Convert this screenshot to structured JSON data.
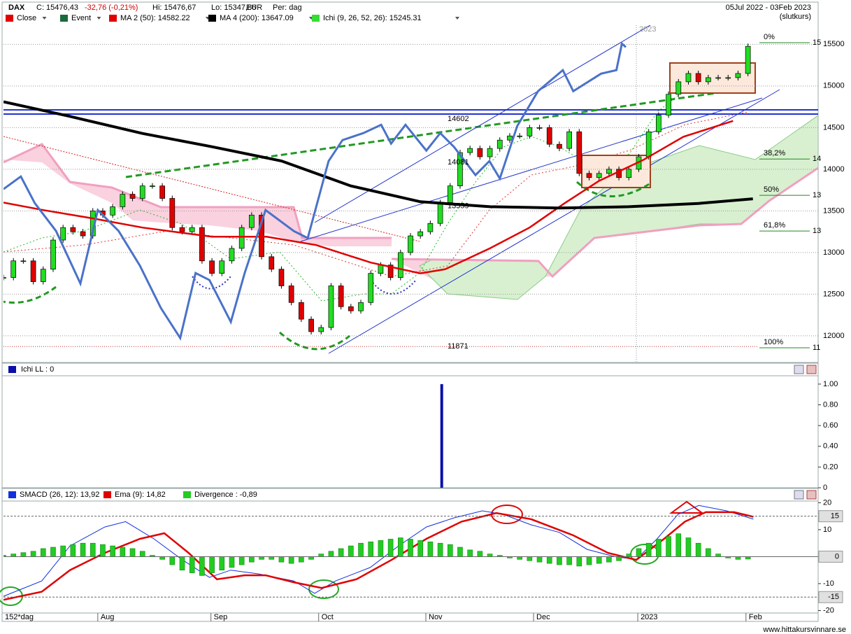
{
  "header": {
    "symbol": "DAX",
    "close": "C: 15476,43",
    "change": "-32,76 (-0,21%)",
    "high": "Hi: 15476,67",
    "low": "Lo: 15347,86",
    "currency": "EUR",
    "period": "Per: dag",
    "range": "05Jul 2022 - 03Feb 2023",
    "note": "(slutkurs)"
  },
  "footer": "www.hittakursvinnare.se",
  "chart_data": [
    {
      "type": "candlestick",
      "xlim": [
        0,
        164
      ],
      "ylim": [
        11680,
        15990
      ],
      "yticks": [
        12000,
        12500,
        13000,
        13500,
        14000,
        14500,
        15000,
        15500
      ],
      "grid": true,
      "year_label": "2023",
      "level_labels": [
        14602,
        14081,
        13559,
        11871
      ],
      "fib_levels": [
        {
          "value": 15520,
          "label": "0%",
          "price_label": "15"
        },
        {
          "value": 14123,
          "label": "38,2%",
          "price_label": "14"
        },
        {
          "value": 13687,
          "label": "50%",
          "price_label": "13"
        },
        {
          "value": 13258,
          "label": "61,8%",
          "price_label": "13"
        },
        {
          "value": 11856,
          "label": "100%",
          "price_label": "11"
        }
      ],
      "series": [
        {
          "name": "Close",
          "type": "candle",
          "color": "#e00000",
          "x": [
            0,
            2,
            4,
            6,
            8,
            10,
            12,
            14,
            16,
            18,
            20,
            22,
            24,
            26,
            28,
            30,
            32,
            34,
            36,
            38,
            40,
            42,
            44,
            46,
            48,
            50,
            52,
            54,
            56,
            58,
            60,
            62,
            64,
            66,
            68,
            70,
            72,
            74,
            76,
            78,
            80,
            82,
            84,
            86,
            88,
            90,
            92,
            94,
            96,
            98,
            100,
            102,
            104,
            106,
            108,
            110,
            112,
            114,
            116,
            118,
            120,
            122,
            124,
            126,
            128,
            130,
            132,
            134,
            136,
            138,
            140,
            142,
            144,
            146,
            148,
            150
          ],
          "values": [
            12700,
            12900,
            12900,
            12650,
            12800,
            13150,
            13300,
            13250,
            13200,
            13500,
            13450,
            13550,
            13700,
            13650,
            13800,
            13800,
            13650,
            13300,
            13250,
            13300,
            12900,
            12750,
            12900,
            13050,
            13300,
            13450,
            12950,
            12800,
            12600,
            12400,
            12200,
            12050,
            12100,
            12600,
            12350,
            12300,
            12400,
            12750,
            12850,
            12700,
            13000,
            13200,
            13250,
            13350,
            13600,
            13800,
            14200,
            14250,
            14150,
            14250,
            14350,
            14400,
            14400,
            14500,
            14500,
            14300,
            14250,
            14450,
            13950,
            13900,
            13950,
            14000,
            13900,
            14000,
            14150,
            14450,
            14650,
            14900,
            15050,
            15150,
            15050,
            15100,
            15100,
            15100,
            15150,
            15476
          ]
        },
        {
          "name": "Event",
          "type": "legend",
          "color": "#1a6b3a"
        },
        {
          "name": "MA 2 (50): 14582.22",
          "type": "line",
          "color": "#e00000",
          "width": 2.5,
          "x": [
            0,
            8,
            18,
            28,
            42,
            53,
            63,
            74,
            84,
            89,
            98,
            106,
            113,
            120,
            129,
            137,
            147
          ],
          "values": [
            13600,
            13510,
            13410,
            13300,
            13190,
            13190,
            13090,
            12880,
            12750,
            12800,
            13050,
            13300,
            13590,
            13860,
            14115,
            14390,
            14580
          ]
        },
        {
          "name": "MA 4 (200): 13647.09",
          "type": "line",
          "color": "#000000",
          "width": 4,
          "x": [
            0,
            13,
            28,
            42,
            56,
            70,
            84,
            98,
            112,
            126,
            140,
            151
          ],
          "values": [
            14810,
            14640,
            14430,
            14270,
            14100,
            13800,
            13610,
            13550,
            13535,
            13550,
            13590,
            13645
          ]
        },
        {
          "name": "Ichi (9, 26, 52, 26): 15245.31",
          "type": "legend",
          "color": "#33dd33"
        },
        {
          "type": "line",
          "color": "#4a72c8",
          "width": 3,
          "x": [
            0,
            3.5,
            6.3,
            10.6,
            15.5,
            19,
            23.2,
            27.5,
            31.7,
            35.6,
            38.7,
            41.5,
            45.8,
            48.6,
            52.8,
            58.5,
            61.3,
            65.5,
            68.3,
            72.5,
            76.1,
            78.1,
            81,
            85.2,
            88,
            90.8,
            95.1,
            97.9,
            100,
            103.5,
            107.7,
            112.7,
            114.8,
            120.4,
            123.5,
            124.6,
            125.4
          ],
          "values": [
            13762,
            13913,
            13594,
            13258,
            12628,
            13510,
            13258,
            12840,
            12335,
            11973,
            12754,
            12670,
            12167,
            12754,
            13510,
            13258,
            13174,
            14098,
            14350,
            14434,
            14534,
            14308,
            14534,
            14224,
            14434,
            14266,
            13930,
            14098,
            13888,
            14518,
            14937,
            15190,
            14937,
            15147,
            15190,
            15508,
            15466
          ]
        }
      ]
    },
    {
      "type": "bar",
      "title": "Ichi LL : 0",
      "xlim": [
        0,
        164
      ],
      "ylim": [
        0,
        1.06
      ],
      "yticks": [
        {
          "value": 1,
          "label": "1.00"
        },
        {
          "value": 0.8,
          "label": "0.80"
        },
        {
          "value": 0.6,
          "label": "0.60"
        },
        {
          "value": 0.4,
          "label": "0.40"
        },
        {
          "value": 0.2,
          "label": "0.20"
        },
        0
      ],
      "series": [
        {
          "color": "#0a10a8",
          "x": [
            88.3
          ],
          "values": [
            1
          ]
        }
      ]
    },
    {
      "type": "line",
      "xlim": [
        0,
        164
      ],
      "ylim": [
        -20.9,
        25.3
      ],
      "yticks": [
        20,
        10,
        -10,
        -20
      ],
      "ref_lines": [
        15,
        0,
        -15
      ],
      "x_label": "152*dag",
      "xticks": [
        {
          "value": 19,
          "label": "Aug"
        },
        {
          "value": 41.8,
          "label": "Sep"
        },
        {
          "value": 63.5,
          "label": "Oct"
        },
        {
          "value": 85.1,
          "label": "Nov"
        },
        {
          "value": 106.8,
          "label": "Dec"
        },
        {
          "value": 127.8,
          "label": "2023"
        },
        {
          "value": 149.6,
          "label": "Feb"
        }
      ],
      "series": [
        {
          "name": "SMACD (26, 12): 13,92",
          "type": "line",
          "color": "#1030e0",
          "width": 1,
          "x": [
            0,
            7.7,
            13.4,
            20.4,
            24.6,
            30.3,
            35.9,
            41.5,
            45.8,
            51.4,
            58.5,
            62.7,
            66.9,
            73.9,
            79.6,
            85.2,
            90.8,
            96.5,
            100.7,
            106.3,
            112,
            117.6,
            123.2,
            127.5,
            131.7,
            135.9,
            140.1,
            145.7,
            151.1
          ],
          "values": [
            -14.7,
            -9,
            4,
            11,
            13,
            6.6,
            -1,
            -7.7,
            -5,
            -6.4,
            -9,
            -13.6,
            -9,
            -4,
            4,
            11,
            14.4,
            17,
            15.7,
            11.8,
            9,
            2.7,
            0,
            -1,
            6.6,
            15.7,
            19,
            17,
            13.9
          ]
        },
        {
          "name": "Ema (9): 14,82",
          "type": "line",
          "color": "#e00000",
          "width": 2.5,
          "x": [
            0,
            7.7,
            13.4,
            20.4,
            27.5,
            32.4,
            37.3,
            43,
            48.6,
            52.8,
            58.5,
            64.1,
            71.1,
            78.2,
            85.2,
            92.3,
            99.3,
            106.3,
            114.8,
            121.8,
            127.5,
            133.1,
            137.3,
            141.5,
            147.2,
            151.1
          ],
          "values": [
            -16,
            -13,
            -5,
            1.4,
            6.6,
            8.7,
            1.4,
            -8.4,
            -6.9,
            -6.9,
            -9.5,
            -11.6,
            -8.4,
            -1.2,
            6.6,
            13,
            16.2,
            13.9,
            7.9,
            1.4,
            -1.2,
            6.6,
            13,
            16.5,
            16.5,
            14.8
          ]
        },
        {
          "name": "Divergence : -0,89",
          "type": "bar",
          "color": "#22cc22",
          "x": [
            0,
            2,
            4,
            6,
            8,
            10,
            12,
            14,
            16,
            18,
            20,
            22,
            24,
            26,
            28,
            30,
            32,
            34,
            36,
            38,
            40,
            42,
            44,
            46,
            48,
            50,
            52,
            54,
            56,
            58,
            60,
            62,
            64,
            66,
            68,
            70,
            72,
            74,
            76,
            78,
            80,
            82,
            84,
            86,
            88,
            90,
            92,
            94,
            96,
            98,
            100,
            102,
            104,
            106,
            108,
            110,
            112,
            114,
            116,
            118,
            120,
            122,
            124,
            126,
            128,
            130,
            132,
            134,
            136,
            138,
            140,
            142,
            144,
            146,
            148,
            150
          ],
          "values": [
            0.5,
            1,
            1.5,
            2,
            3,
            3.5,
            4,
            4.5,
            5,
            5,
            4.5,
            4,
            3.5,
            3,
            2,
            0.5,
            -1,
            -3,
            -5,
            -6,
            -7,
            -6,
            -5,
            -4,
            -3,
            -2,
            -1,
            -1,
            -2,
            -2.5,
            -2,
            -1,
            1,
            2,
            3,
            4,
            5,
            5.5,
            6,
            6.5,
            7,
            6.5,
            6,
            5.5,
            5,
            4.5,
            3.5,
            2.5,
            2,
            1,
            0.5,
            -0.5,
            -1,
            -1.5,
            -2,
            -2.5,
            -3,
            -3,
            -3.5,
            -3,
            -2.5,
            -2,
            -1.5,
            1,
            3,
            5,
            6.5,
            7.5,
            8.5,
            7,
            5,
            3,
            1,
            -0.5,
            -1,
            -0.9
          ]
        }
      ]
    }
  ]
}
